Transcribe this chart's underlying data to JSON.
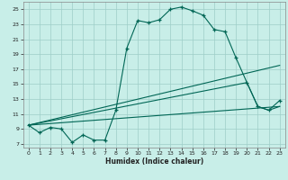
{
  "xlabel": "Humidex (Indice chaleur)",
  "bg_color": "#c8eee8",
  "grid_color": "#9ecec8",
  "line_color": "#006655",
  "xlim": [
    -0.5,
    23.5
  ],
  "ylim": [
    6.5,
    26.0
  ],
  "xticks": [
    0,
    1,
    2,
    3,
    4,
    5,
    6,
    7,
    8,
    9,
    10,
    11,
    12,
    13,
    14,
    15,
    16,
    17,
    18,
    19,
    20,
    21,
    22,
    23
  ],
  "yticks": [
    7,
    9,
    11,
    13,
    15,
    17,
    19,
    21,
    23,
    25
  ],
  "curve_x": [
    0,
    1,
    2,
    3,
    4,
    5,
    6,
    7,
    8,
    9,
    10,
    11,
    12,
    13,
    14,
    15,
    16,
    17,
    18,
    19,
    20,
    21,
    22,
    23
  ],
  "curve_y": [
    9.5,
    8.5,
    9.2,
    9.0,
    7.2,
    8.2,
    7.5,
    7.5,
    11.5,
    19.8,
    23.5,
    23.2,
    23.6,
    25.0,
    25.3,
    24.8,
    24.2,
    22.3,
    22.0,
    18.5,
    15.2,
    12.0,
    11.5,
    12.8
  ],
  "line1_x": [
    0,
    23
  ],
  "line1_y": [
    9.5,
    17.5
  ],
  "line2_x": [
    0,
    20,
    21,
    22,
    23
  ],
  "line2_y": [
    9.5,
    15.2,
    12.0,
    11.5,
    12.0
  ],
  "line3_x": [
    0,
    23
  ],
  "line3_y": [
    9.5,
    12.0
  ]
}
